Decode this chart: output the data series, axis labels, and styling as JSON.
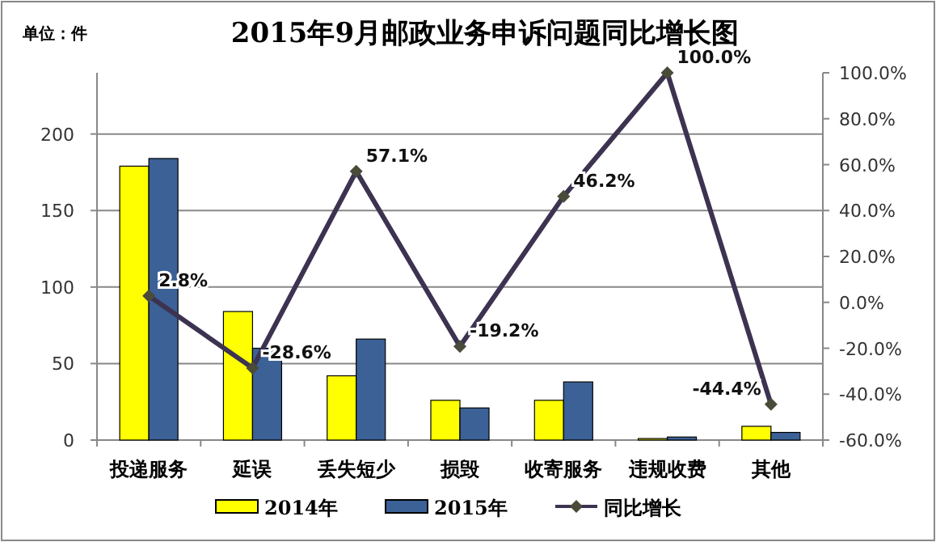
{
  "chart_data": {
    "type": "bar",
    "title": "2015年9月邮政业务申诉问题同比增长图",
    "annotations": [
      "单位：件"
    ],
    "categories": [
      "投递服务",
      "延误",
      "丢失短少",
      "损毁",
      "收寄服务",
      "违规收费",
      "其他"
    ],
    "series": [
      {
        "name": "2014年",
        "color": "#ffff00",
        "values": [
          179,
          84,
          42,
          26,
          26,
          1,
          9
        ]
      },
      {
        "name": "2015年",
        "color": "#3b6196",
        "values": [
          184,
          60,
          66,
          21,
          38,
          2,
          5
        ]
      },
      {
        "name": "同比增长",
        "type": "line",
        "axis": "y2",
        "color": "#3d3351",
        "marker": "diamond",
        "values": [
          2.8,
          -28.6,
          57.1,
          -19.2,
          46.2,
          100.0,
          -44.4
        ],
        "value_labels": [
          "2.8%",
          "-28.6%",
          "57.1%",
          "-19.2%",
          "46.2%",
          "100.0%",
          "-44.4%"
        ]
      }
    ],
    "ylim": [
      0,
      240
    ],
    "yticks": [
      0,
      50,
      100,
      150,
      200
    ],
    "y2lim": [
      -60,
      100
    ],
    "y2ticks": [
      {
        "value": -60,
        "label": "-60.0%"
      },
      {
        "value": -40,
        "label": "-40.0%"
      },
      {
        "value": -20,
        "label": "-20.0%"
      },
      {
        "value": 0,
        "label": "0.0%"
      },
      {
        "value": 20,
        "label": "20.0%"
      },
      {
        "value": 40,
        "label": "40.0%"
      },
      {
        "value": 60,
        "label": "60.0%"
      },
      {
        "value": 80,
        "label": "80.0%"
      },
      {
        "value": 100,
        "label": "100.0%"
      }
    ],
    "grid": "y",
    "legend": "bottom"
  }
}
